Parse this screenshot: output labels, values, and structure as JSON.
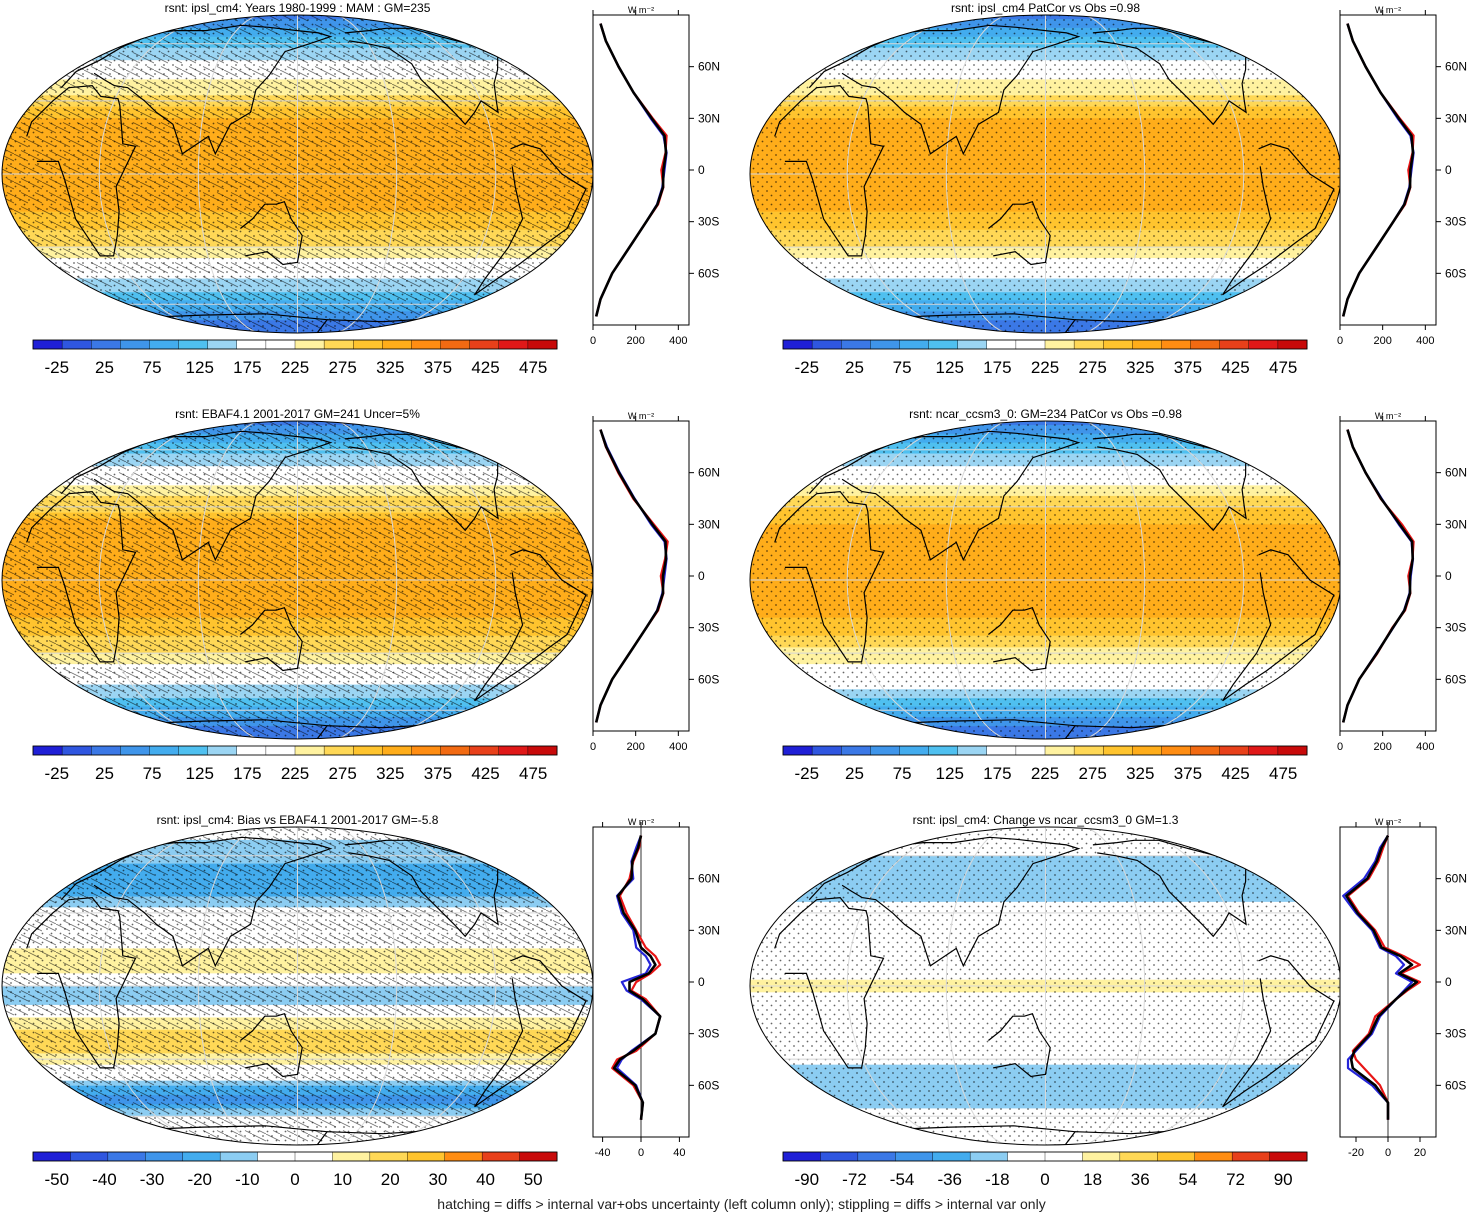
{
  "figure_caption": "hatching = diffs > internal var+obs uncertainty (left column only); stippling = diffs > internal var only",
  "colors": {
    "mean_scale": [
      "#1f1fd6",
      "#2f56e0",
      "#3b78e6",
      "#3f95ea",
      "#43acee",
      "#4fc0f0",
      "#9bd5f3",
      "#ffffff",
      "#ffffff",
      "#fff2a0",
      "#ffd856",
      "#ffc42e",
      "#ffad1a",
      "#ff8d12",
      "#f26a12",
      "#e8401a",
      "#e01818",
      "#c80a0a"
    ],
    "diff_scale": [
      "#1f1fd6",
      "#2f56e0",
      "#3b78e6",
      "#3f95ea",
      "#43acee",
      "#8ccdf2",
      "#ffffff",
      "#ffffff",
      "#fff2a0",
      "#ffd856",
      "#ffc42e",
      "#ff8d12",
      "#e8401a",
      "#c80a0a"
    ],
    "ocean_model": "#ffffff",
    "profile_model": "#2525d8",
    "profile_obs": "#e81515",
    "profile_ens": "#000000"
  },
  "chart_data": [
    {
      "type": "heatmap",
      "title": "rsnt: ipsl_cm4: Years 1980-1999 : MAM : GM=235",
      "colorbar_ticks": [
        "-25",
        "25",
        "75",
        "125",
        "175",
        "225",
        "275",
        "325",
        "375",
        "425",
        "475"
      ],
      "scale_min": -50,
      "scale_max": 500,
      "hatching": true,
      "stippling": true,
      "profile": {
        "unit": "W m⁻²",
        "xlim": [
          0,
          450
        ],
        "xticks": [
          "0",
          "200",
          "400"
        ],
        "ylim": [
          -90,
          90
        ],
        "yticks": [
          "60N",
          "30N",
          "0",
          "30S",
          "60S"
        ],
        "lat": [
          85,
          75,
          60,
          45,
          30,
          20,
          10,
          0,
          -10,
          -20,
          -30,
          -45,
          -60,
          -75,
          -85
        ],
        "series": [
          {
            "values": [
              35,
              60,
              120,
              190,
              270,
              330,
              345,
              335,
              325,
              300,
              250,
              170,
              90,
              35,
              15
            ]
          },
          {
            "values": [
              35,
              60,
              120,
              190,
              280,
              345,
              340,
              320,
              330,
              305,
              250,
              170,
              90,
              35,
              15
            ]
          },
          {
            "values": [
              35,
              60,
              120,
              190,
              275,
              335,
              342,
              330,
              328,
              302,
              250,
              170,
              90,
              35,
              15
            ]
          }
        ]
      }
    },
    {
      "type": "heatmap",
      "title": "rsnt: ipsl_cm4 PatCor vs Obs =0.98",
      "colorbar_ticks": [
        "-25",
        "25",
        "75",
        "125",
        "175",
        "225",
        "275",
        "325",
        "375",
        "425",
        "475"
      ],
      "scale_min": -50,
      "scale_max": 500,
      "hatching": false,
      "stippling": true,
      "profile": {
        "unit": "W m⁻²",
        "xlim": [
          0,
          450
        ],
        "xticks": [
          "0",
          "200",
          "400"
        ],
        "ylim": [
          -90,
          90
        ],
        "yticks": [
          "60N",
          "30N",
          "0",
          "30S",
          "60S"
        ],
        "lat": [
          85,
          75,
          60,
          45,
          30,
          20,
          10,
          0,
          -10,
          -20,
          -30,
          -45,
          -60,
          -75,
          -85
        ],
        "series": [
          {
            "values": [
              35,
              60,
              120,
              190,
              270,
              330,
              345,
              335,
              325,
              300,
              250,
              170,
              90,
              35,
              15
            ]
          },
          {
            "values": [
              35,
              60,
              120,
              190,
              280,
              345,
              340,
              320,
              330,
              305,
              250,
              170,
              90,
              35,
              15
            ]
          },
          {
            "values": [
              35,
              60,
              120,
              190,
              275,
              335,
              342,
              330,
              328,
              302,
              250,
              170,
              90,
              35,
              15
            ]
          }
        ]
      }
    },
    {
      "type": "heatmap",
      "title": "rsnt: EBAF4.1 2001-2017 GM=241 Uncer=5%",
      "colorbar_ticks": [
        "-25",
        "25",
        "75",
        "125",
        "175",
        "225",
        "275",
        "325",
        "375",
        "425",
        "475"
      ],
      "scale_min": -50,
      "scale_max": 500,
      "hatching": true,
      "stippling": true,
      "profile": {
        "unit": "W m⁻²",
        "xlim": [
          0,
          450
        ],
        "xticks": [
          "0",
          "200",
          "400"
        ],
        "ylim": [
          -90,
          90
        ],
        "yticks": [
          "60N",
          "30N",
          "0",
          "30S",
          "60S"
        ],
        "lat": [
          85,
          75,
          60,
          45,
          30,
          20,
          10,
          0,
          -10,
          -20,
          -30,
          -45,
          -60,
          -75,
          -85
        ],
        "series": [
          {
            "values": [
              35,
              65,
              125,
              195,
              272,
              335,
              345,
              335,
              325,
              300,
              250,
              170,
              90,
              35,
              15
            ]
          },
          {
            "values": [
              35,
              60,
              118,
              188,
              285,
              350,
              338,
              318,
              330,
              305,
              250,
              170,
              90,
              35,
              15
            ]
          },
          {
            "values": [
              35,
              62,
              122,
              192,
              278,
              340,
              342,
              328,
              328,
              302,
              250,
              170,
              90,
              35,
              15
            ]
          }
        ]
      }
    },
    {
      "type": "heatmap",
      "title": "rsnt: ncar_ccsm3_0: GM=234 PatCor vs Obs =0.98",
      "colorbar_ticks": [
        "-25",
        "25",
        "75",
        "125",
        "175",
        "225",
        "275",
        "325",
        "375",
        "425",
        "475"
      ],
      "scale_min": -50,
      "scale_max": 500,
      "hatching": false,
      "stippling": true,
      "profile": {
        "unit": "W m⁻²",
        "xlim": [
          0,
          450
        ],
        "xticks": [
          "0",
          "200",
          "400"
        ],
        "ylim": [
          -90,
          90
        ],
        "yticks": [
          "60N",
          "30N",
          "0",
          "30S",
          "60S"
        ],
        "lat": [
          85,
          75,
          60,
          45,
          30,
          20,
          10,
          0,
          -10,
          -20,
          -30,
          -45,
          -60,
          -75,
          -85
        ],
        "series": [
          {
            "values": [
              35,
              60,
              120,
              195,
              275,
              335,
              342,
              332,
              326,
              300,
              250,
              170,
              90,
              35,
              15
            ]
          },
          {
            "values": [
              35,
              60,
              120,
              190,
              290,
              345,
              340,
              320,
              330,
              305,
              245,
              175,
              90,
              35,
              15
            ]
          },
          {
            "values": [
              35,
              60,
              120,
              192,
              280,
              338,
              341,
              328,
              328,
              302,
              248,
              172,
              90,
              35,
              15
            ]
          }
        ]
      }
    },
    {
      "type": "heatmap",
      "title": "rsnt: ipsl_cm4: Bias vs EBAF4.1 2001-2017 GM=-5.8",
      "colorbar_ticks": [
        "-50",
        "-40",
        "-30",
        "-20",
        "-10",
        "0",
        "10",
        "20",
        "30",
        "40",
        "50"
      ],
      "scale_min": -55,
      "scale_max": 55,
      "hatching": true,
      "stippling": true,
      "profile": {
        "unit": "W m⁻²",
        "xlim": [
          -50,
          50
        ],
        "xticks": [
          "-40",
          "0",
          "40"
        ],
        "ylim": [
          -90,
          90
        ],
        "yticks": [
          "60N",
          "30N",
          "0",
          "30S",
          "60S"
        ],
        "lat": [
          85,
          78,
          70,
          60,
          50,
          40,
          30,
          20,
          15,
          10,
          5,
          0,
          -5,
          -10,
          -20,
          -30,
          -40,
          -45,
          -50,
          -60,
          -70,
          -80
        ],
        "series": [
          {
            "values": [
              0,
              -5,
              -10,
              -8,
              -25,
              -20,
              -8,
              -5,
              5,
              10,
              5,
              -20,
              -15,
              0,
              20,
              15,
              -10,
              -20,
              -25,
              -5,
              2,
              0
            ]
          },
          {
            "values": [
              0,
              -2,
              -8,
              -12,
              -22,
              -15,
              -5,
              5,
              15,
              20,
              10,
              -5,
              -10,
              5,
              20,
              15,
              -5,
              -25,
              -30,
              -8,
              2,
              0
            ]
          },
          {
            "values": [
              0,
              -3,
              -9,
              -10,
              -24,
              -18,
              -6,
              0,
              10,
              15,
              8,
              -12,
              -12,
              2,
              20,
              15,
              -8,
              -22,
              -28,
              -6,
              2,
              0
            ]
          }
        ]
      }
    },
    {
      "type": "heatmap",
      "title": "rsnt: ipsl_cm4: Change vs ncar_ccsm3_0 GM=1.3",
      "colorbar_ticks": [
        "-90",
        "-72",
        "-54",
        "-36",
        "-18",
        "0",
        "18",
        "36",
        "54",
        "72",
        "90"
      ],
      "scale_min": -99,
      "scale_max": 99,
      "hatching": false,
      "stippling": true,
      "profile": {
        "unit": "W m⁻²",
        "xlim": [
          -30,
          30
        ],
        "xticks": [
          "-20",
          "0",
          "20"
        ],
        "ylim": [
          -90,
          90
        ],
        "yticks": [
          "60N",
          "30N",
          "0",
          "30S",
          "60S"
        ],
        "lat": [
          85,
          78,
          70,
          60,
          50,
          40,
          30,
          20,
          15,
          10,
          5,
          0,
          -5,
          -10,
          -20,
          -30,
          -40,
          -45,
          -50,
          -60,
          -70,
          -80
        ],
        "series": [
          {
            "values": [
              0,
              -5,
              -8,
              -15,
              -28,
              -20,
              -10,
              -5,
              5,
              10,
              5,
              15,
              10,
              5,
              -5,
              -10,
              -20,
              -25,
              -25,
              -10,
              0,
              0
            ]
          },
          {
            "values": [
              0,
              -3,
              -6,
              -12,
              -25,
              -18,
              -8,
              -2,
              10,
              20,
              8,
              20,
              12,
              5,
              -8,
              -12,
              -22,
              -20,
              -15,
              -5,
              0,
              0
            ]
          },
          {
            "values": [
              0,
              -4,
              -7,
              -13,
              -26,
              -19,
              -9,
              -4,
              8,
              15,
              7,
              18,
              11,
              5,
              -6,
              -11,
              -21,
              -23,
              -22,
              -8,
              0,
              0
            ]
          }
        ]
      }
    }
  ]
}
